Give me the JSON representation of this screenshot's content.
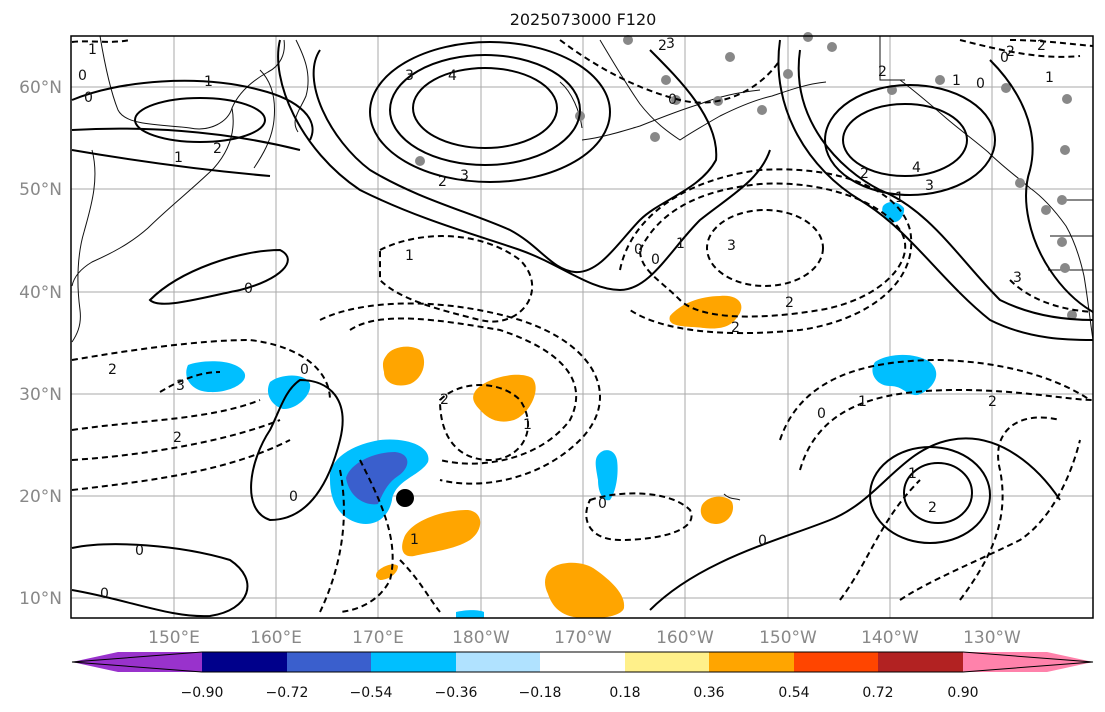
{
  "title": "2025073000 F120",
  "lat_labels": [
    "60°N",
    "50°N",
    "40°N",
    "30°N",
    "20°N",
    "10°N"
  ],
  "lon_labels": [
    "150°E",
    "160°E",
    "170°E",
    "180°W",
    "170°W",
    "160°W",
    "150°W",
    "140°W",
    "130°W"
  ],
  "colorbar": {
    "ticks": [
      "−0.90",
      "−0.72",
      "−0.54",
      "−0.36",
      "−0.18",
      "0.18",
      "0.36",
      "0.54",
      "0.72",
      "0.90"
    ],
    "colors": [
      "#9932cc",
      "#00008b",
      "#3a5fcd",
      "#00bfff",
      "#b0e2ff",
      "#ffffff",
      "#fff08a",
      "#ffa500",
      "#ff4500",
      "#b22222",
      "#ff82ab"
    ]
  },
  "contour_labels": [
    "1",
    "0",
    "0",
    "1",
    "2",
    "3",
    "4",
    "2",
    "2",
    "3",
    "1",
    "0",
    "1",
    "2",
    "3",
    "4",
    "3",
    "1",
    "0",
    "0",
    "1",
    "2",
    "3",
    "2",
    "2",
    "1",
    "0",
    "0",
    "1",
    "2",
    "3",
    "2",
    "0",
    "2",
    "1",
    "0",
    "1",
    "2",
    "0",
    "0",
    "0",
    "1",
    "2",
    "0",
    "0",
    "1",
    "2",
    "3",
    "0",
    "2"
  ],
  "colors": {
    "neg_shade": "#00bfff",
    "neg_strong": "#3a5fcd",
    "pos_shade": "#ffa500",
    "station": "#888888"
  }
}
